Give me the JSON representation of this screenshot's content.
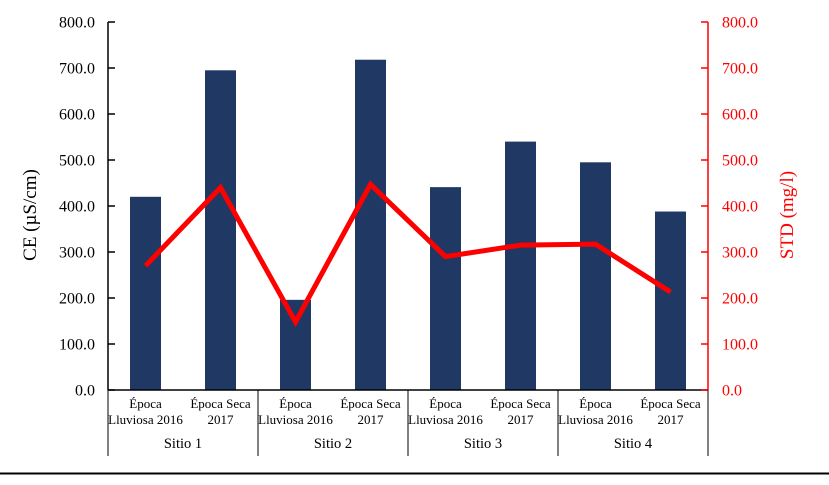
{
  "chart_data": {
    "type": "combo-bar-line",
    "title": "",
    "group_labels": [
      "Sitio 1",
      "Sitio 2",
      "Sitio 3",
      "Sitio 4"
    ],
    "category_labels": [
      [
        "Época",
        "Lluviosa 2016"
      ],
      [
        "Época Seca",
        "2017"
      ],
      [
        "Época",
        "Lluviosa 2016"
      ],
      [
        "Época Seca",
        "2017"
      ],
      [
        "Época",
        "Lluviosa 2016"
      ],
      [
        "Época Seca",
        "2017"
      ],
      [
        "Época",
        "Lluviosa 2016"
      ],
      [
        "Época Seca",
        "2017"
      ]
    ],
    "series": [
      {
        "name": "CE",
        "type": "bar",
        "axis": "left",
        "color": "#1f3864",
        "values": [
          420,
          695,
          196,
          718,
          441,
          540,
          495,
          388
        ]
      },
      {
        "name": "STD",
        "type": "line",
        "axis": "right",
        "color": "#ff0000",
        "values": [
          270,
          440,
          148,
          447,
          290,
          315,
          317,
          213
        ]
      }
    ],
    "left_axis": {
      "label": "CE (µS/cm)",
      "min": 0,
      "max": 800,
      "step": 100,
      "decimals": 1,
      "color": "#000000"
    },
    "right_axis": {
      "label": "STD (mg/l)",
      "min": 0,
      "max": 800,
      "step": 100,
      "decimals": 1,
      "color": "#ff0000"
    },
    "grid": false,
    "legend_position": "none"
  }
}
